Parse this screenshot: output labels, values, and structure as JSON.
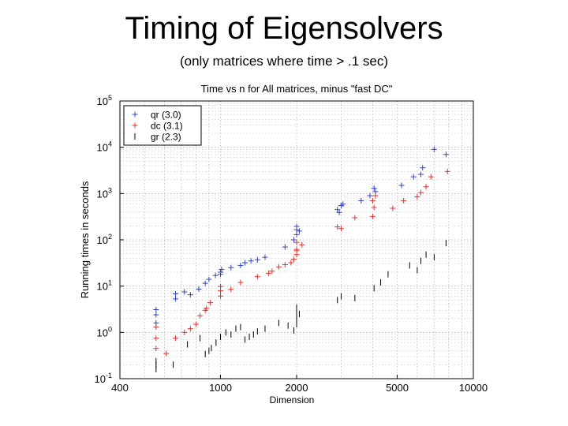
{
  "slide": {
    "title": "Timing of Eigensolvers",
    "subtitle": "(only matrices where time > .1 sec)"
  },
  "chart_data": {
    "type": "scatter",
    "title": "Time vs n for All matrices, minus \"fast DC\"",
    "xlabel": "Dimension",
    "ylabel": "Running times in seconds",
    "xscale": "log",
    "yscale": "log",
    "xlim": [
      400,
      10000
    ],
    "ylim": [
      0.1,
      100000
    ],
    "x_ticks": [
      {
        "value": 400,
        "label": "400"
      },
      {
        "value": 1000,
        "label": "1000"
      },
      {
        "value": 2000,
        "label": "2000"
      },
      {
        "value": 5000,
        "label": "5000"
      },
      {
        "value": 10000,
        "label": "10000"
      }
    ],
    "y_ticks": [
      {
        "value": 0.1,
        "base": "10",
        "exp": "-1"
      },
      {
        "value": 1,
        "base": "10",
        "exp": "0"
      },
      {
        "value": 10,
        "base": "10",
        "exp": "1"
      },
      {
        "value": 100,
        "base": "10",
        "exp": "2"
      },
      {
        "value": 1000,
        "base": "10",
        "exp": "3"
      },
      {
        "value": 10000,
        "base": "10",
        "exp": "4"
      },
      {
        "value": 100000,
        "base": "10",
        "exp": "5"
      }
    ],
    "grid": true,
    "legend_position": "top-left",
    "series": [
      {
        "name": "qr (3.0)",
        "color": "#3344bb",
        "marker": "plus",
        "points": [
          [
            556,
            1.6
          ],
          [
            556,
            2.4
          ],
          [
            556,
            3.1
          ],
          [
            664,
            5.3
          ],
          [
            664,
            6.8
          ],
          [
            720,
            7.5
          ],
          [
            760,
            6.5
          ],
          [
            820,
            8.6
          ],
          [
            870,
            11.5
          ],
          [
            900,
            14
          ],
          [
            955,
            17
          ],
          [
            1000,
            18
          ],
          [
            1000,
            20
          ],
          [
            1010,
            23
          ],
          [
            1100,
            25
          ],
          [
            1200,
            28
          ],
          [
            1250,
            32
          ],
          [
            1320,
            35
          ],
          [
            1400,
            37
          ],
          [
            1500,
            42
          ],
          [
            1800,
            70
          ],
          [
            1950,
            100
          ],
          [
            2000,
            130
          ],
          [
            2000,
            165
          ],
          [
            2000,
            195
          ],
          [
            2050,
            155
          ],
          [
            2900,
            450
          ],
          [
            2950,
            390
          ],
          [
            3000,
            550
          ],
          [
            3050,
            590
          ],
          [
            3600,
            700
          ],
          [
            3900,
            900
          ],
          [
            4050,
            1300
          ],
          [
            4100,
            1100
          ],
          [
            5200,
            1500
          ],
          [
            5800,
            2300
          ],
          [
            6200,
            2600
          ],
          [
            6300,
            3600
          ],
          [
            7000,
            9000
          ],
          [
            7800,
            7000
          ]
        ]
      },
      {
        "name": "dc (3.1)",
        "color": "#dd3333",
        "marker": "plus",
        "points": [
          [
            556,
            0.45
          ],
          [
            556,
            0.75
          ],
          [
            556,
            1.3
          ],
          [
            610,
            0.35
          ],
          [
            664,
            0.75
          ],
          [
            720,
            1.0
          ],
          [
            760,
            1.2
          ],
          [
            800,
            1.5
          ],
          [
            830,
            2.3
          ],
          [
            870,
            3.0
          ],
          [
            880,
            3.3
          ],
          [
            910,
            4.4
          ],
          [
            1000,
            6.1
          ],
          [
            1000,
            7.9
          ],
          [
            1000,
            9.8
          ],
          [
            1100,
            8.5
          ],
          [
            1200,
            12
          ],
          [
            1400,
            16
          ],
          [
            1550,
            19
          ],
          [
            1600,
            21
          ],
          [
            1700,
            26
          ],
          [
            1800,
            29
          ],
          [
            1900,
            32
          ],
          [
            1950,
            38
          ],
          [
            2000,
            48
          ],
          [
            2000,
            58
          ],
          [
            2000,
            62
          ],
          [
            2000,
            88
          ],
          [
            2100,
            78
          ],
          [
            2900,
            190
          ],
          [
            3000,
            175
          ],
          [
            3400,
            300
          ],
          [
            4000,
            320
          ],
          [
            4050,
            500
          ],
          [
            4000,
            700
          ],
          [
            4100,
            900
          ],
          [
            4800,
            480
          ],
          [
            5300,
            700
          ],
          [
            6000,
            850
          ],
          [
            6200,
            1050
          ],
          [
            6500,
            1400
          ],
          [
            6800,
            2300
          ],
          [
            7900,
            3000
          ]
        ]
      },
      {
        "name": "gr (2.3)",
        "color": "#000000",
        "marker": "vbar",
        "points": [
          [
            556,
            0.16
          ],
          [
            556,
            0.2
          ],
          [
            556,
            0.24
          ],
          [
            650,
            0.2
          ],
          [
            740,
            0.55
          ],
          [
            830,
            0.75
          ],
          [
            870,
            0.34
          ],
          [
            900,
            0.4
          ],
          [
            920,
            0.46
          ],
          [
            960,
            0.6
          ],
          [
            1000,
            0.8
          ],
          [
            1050,
            1.0
          ],
          [
            1100,
            0.9
          ],
          [
            1150,
            1.2
          ],
          [
            1200,
            1.3
          ],
          [
            1250,
            0.7
          ],
          [
            1300,
            0.8
          ],
          [
            1350,
            0.9
          ],
          [
            1400,
            1.05
          ],
          [
            1500,
            1.2
          ],
          [
            1700,
            1.6
          ],
          [
            1850,
            1.4
          ],
          [
            1950,
            1.1
          ],
          [
            2000,
            1.5
          ],
          [
            2000,
            1.75
          ],
          [
            2000,
            2.2
          ],
          [
            2000,
            2.8
          ],
          [
            2000,
            3.4
          ],
          [
            2050,
            2.5
          ],
          [
            2900,
            5.0
          ],
          [
            3000,
            6.0
          ],
          [
            3400,
            5.5
          ],
          [
            4050,
            9.0
          ],
          [
            4300,
            12
          ],
          [
            4600,
            18
          ],
          [
            5600,
            28
          ],
          [
            6000,
            22
          ],
          [
            6200,
            35
          ],
          [
            6500,
            48
          ],
          [
            7000,
            42
          ],
          [
            7800,
            85
          ]
        ]
      }
    ]
  }
}
